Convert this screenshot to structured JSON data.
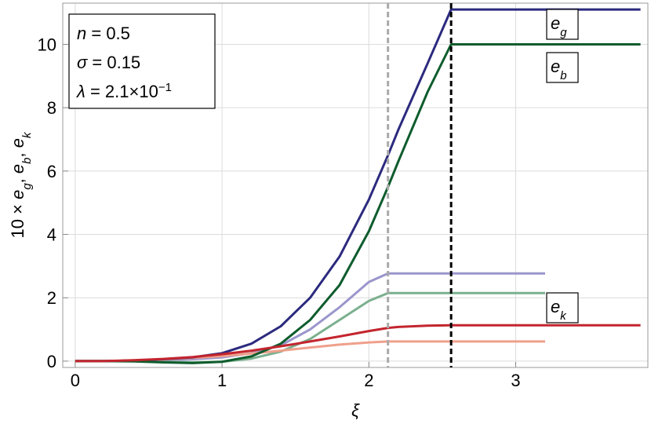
{
  "chart_data": {
    "type": "line",
    "x_label": [
      {
        "text": "ξ",
        "italic": true
      }
    ],
    "y_label": [
      {
        "text": "10 × "
      },
      {
        "text": "e",
        "italic": true,
        "sub": "g"
      },
      {
        "text": ", "
      },
      {
        "text": "e",
        "italic": true,
        "sub": "b"
      },
      {
        "text": ", "
      },
      {
        "text": "e",
        "italic": true,
        "sub": "k"
      }
    ],
    "x": [
      0,
      0.2,
      0.4,
      0.6,
      0.8,
      1.0,
      1.2,
      1.4,
      1.6,
      1.8,
      2.0,
      2.13,
      2.2,
      2.4,
      2.56,
      2.8,
      3.2,
      3.85
    ],
    "series": [
      {
        "color": "#9a96cc",
        "values": [
          0,
          0,
          0.01,
          0.03,
          0.06,
          0.12,
          0.25,
          0.5,
          1.0,
          1.7,
          2.5,
          2.77,
          2.77,
          2.77,
          2.77,
          2.77,
          2.77,
          null
        ]
      },
      {
        "color": "#7bb08e",
        "values": [
          0,
          0,
          0,
          -0.02,
          -0.04,
          -0.02,
          0.08,
          0.3,
          0.7,
          1.3,
          1.9,
          2.15,
          2.15,
          2.15,
          2.15,
          2.15,
          2.15,
          null
        ]
      },
      {
        "color": "#efa08c",
        "values": [
          0,
          0,
          0.02,
          0.05,
          0.1,
          0.16,
          0.24,
          0.33,
          0.43,
          0.52,
          0.59,
          0.62,
          0.62,
          0.62,
          0.62,
          0.62,
          0.62,
          null
        ]
      },
      {
        "color": "#2b2a7e",
        "values": [
          0,
          0,
          0.02,
          0.06,
          0.12,
          0.25,
          0.55,
          1.1,
          2.0,
          3.3,
          5.1,
          6.5,
          7.3,
          9.4,
          11.1,
          11.1,
          11.1,
          11.1
        ]
      },
      {
        "color": "#0e5c2d",
        "values": [
          0,
          0,
          -0.01,
          -0.04,
          -0.06,
          -0.02,
          0.15,
          0.55,
          1.3,
          2.4,
          4.1,
          5.5,
          6.3,
          8.5,
          10.0,
          10.0,
          10.0,
          10.0
        ]
      },
      {
        "color": "#c3252e",
        "values": [
          0,
          0,
          0.03,
          0.07,
          0.13,
          0.22,
          0.33,
          0.47,
          0.62,
          0.78,
          0.95,
          1.05,
          1.08,
          1.12,
          1.13,
          1.13,
          1.13,
          1.13
        ]
      }
    ],
    "vertical_lines": [
      {
        "x": 2.13,
        "color": "#aaaaaa"
      },
      {
        "x": 2.56,
        "color": "#000000"
      }
    ],
    "curve_labels": [
      [
        {
          "text": "e",
          "italic": true,
          "sub": "g"
        }
      ],
      [
        {
          "text": "e",
          "italic": true,
          "sub": "b"
        }
      ],
      [
        {
          "text": "e",
          "italic": true,
          "sub": "k"
        }
      ]
    ],
    "parameters": [
      [
        {
          "text": "n",
          "italic": true
        },
        {
          "text": " = 0.5"
        }
      ],
      [
        {
          "text": "σ",
          "italic": true
        },
        {
          "text": " = 0.15"
        }
      ],
      [
        {
          "text": "λ",
          "italic": true
        },
        {
          "text": " = 2.1×10",
          "sup": "−1"
        }
      ]
    ],
    "xlim": [
      -0.085,
      3.9
    ],
    "ylim": [
      -0.2,
      11.3
    ],
    "xticks": [
      0,
      1,
      2,
      3
    ],
    "yticks": [
      0,
      2,
      4,
      6,
      8,
      10
    ],
    "grid": true
  }
}
